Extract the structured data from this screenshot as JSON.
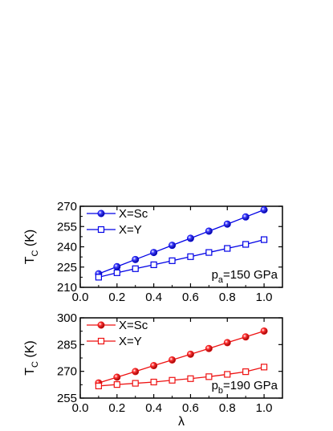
{
  "chart_data": [
    {
      "type": "line",
      "ylabel_main": "T",
      "ylabel_sub": "C",
      "ylabel_unit": " (K)",
      "xlabel": "",
      "xlim": [
        0.0,
        1.1
      ],
      "ylim": [
        210,
        270
      ],
      "xticks": [
        "0.0",
        "0.2",
        "0.4",
        "0.6",
        "0.8",
        "1.0"
      ],
      "yticks": [
        "210",
        "225",
        "240",
        "255",
        "270"
      ],
      "color": "#0000e6",
      "legend_position": "top-left",
      "annotation": {
        "main": "p",
        "sub": "a",
        "rest": "=150 GPa"
      },
      "x": [
        0.1,
        0.2,
        0.3,
        0.4,
        0.5,
        0.6,
        0.7,
        0.8,
        0.9,
        1.0
      ],
      "series": [
        {
          "name": "X=Sc",
          "marker": "filled-circle",
          "values": [
            220.0,
            225.3,
            230.6,
            235.8,
            241.1,
            246.3,
            251.6,
            256.8,
            262.1,
            267.4
          ]
        },
        {
          "name": "X=Y",
          "marker": "open-square",
          "values": [
            217.5,
            220.8,
            223.8,
            226.7,
            229.7,
            232.7,
            235.8,
            238.8,
            241.8,
            245.3
          ]
        }
      ]
    },
    {
      "type": "line",
      "ylabel_main": "T",
      "ylabel_sub": "C",
      "ylabel_unit": " (K)",
      "xlabel": "λ",
      "xlim": [
        0.0,
        1.1
      ],
      "ylim": [
        255,
        300
      ],
      "xticks": [
        "0.0",
        "0.2",
        "0.4",
        "0.6",
        "0.8",
        "1.0"
      ],
      "yticks": [
        "255",
        "270",
        "285",
        "300"
      ],
      "color": "#ee1111",
      "legend_position": "top-left",
      "annotation": {
        "main": "p",
        "sub": "b",
        "rest": "=190 GPa"
      },
      "x": [
        0.1,
        0.2,
        0.3,
        0.4,
        0.5,
        0.6,
        0.7,
        0.8,
        0.9,
        1.0
      ],
      "series": [
        {
          "name": "X=Sc",
          "marker": "filled-circle",
          "values": [
            263.5,
            266.7,
            269.9,
            273.2,
            276.4,
            279.6,
            282.8,
            286.1,
            289.3,
            292.6
          ]
        },
        {
          "name": "X=Y",
          "marker": "open-square",
          "values": [
            261.8,
            262.6,
            263.3,
            264.0,
            265.0,
            265.9,
            267.0,
            268.3,
            269.8,
            272.4
          ]
        }
      ]
    }
  ]
}
